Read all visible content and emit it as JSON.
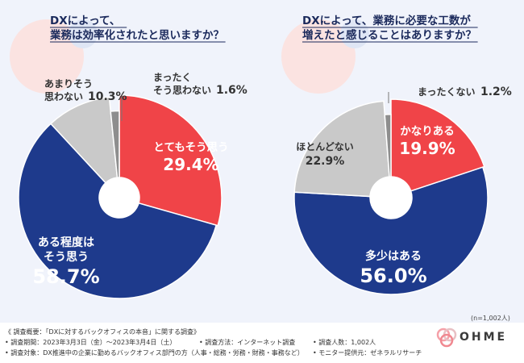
{
  "chart_data": [
    {
      "type": "pie",
      "title": "DXによって、業務は効率化されたと思いますか？",
      "title_lines": [
        "DXによって、",
        "業務は効率化されたと思いますか？"
      ],
      "slices": [
        {
          "label": "とてもそう思う",
          "value": 29.4,
          "display_value": "29.4%",
          "color": "#f04448"
        },
        {
          "label": "ある程度はそう思う",
          "label_lines": [
            "ある程度は",
            "そう思う"
          ],
          "value": 58.7,
          "display_value": "58.7%",
          "color": "#1e3a8c"
        },
        {
          "label": "あまりそう思わない",
          "label_lines": [
            "あまりそう",
            "思わない"
          ],
          "value": 10.3,
          "display_value": "10.3%",
          "color": "#c9c9c9"
        },
        {
          "label": "まったくそう思わない",
          "label_lines": [
            "まったく",
            "そう思わない"
          ],
          "value": 1.6,
          "display_value": "1.6%",
          "color": "#8e8e8e"
        }
      ]
    },
    {
      "type": "pie",
      "title": "DXによって、業務に必要な工数が増えたと感じることはありますか？",
      "title_lines": [
        "DXによって、業務に必要な工数が",
        "増えたと感じることはありますか？"
      ],
      "slices": [
        {
          "label": "かなりある",
          "value": 19.9,
          "display_value": "19.9%",
          "color": "#f04448"
        },
        {
          "label": "多少はある",
          "value": 56.0,
          "display_value": "56.0%",
          "color": "#1e3a8c"
        },
        {
          "label": "ほとんどない",
          "value": 22.9,
          "display_value": "22.9%",
          "color": "#c9c9c9"
        },
        {
          "label": "まったくない",
          "value": 1.2,
          "display_value": "1.2%",
          "color": "#8e8e8e"
        }
      ]
    }
  ],
  "sample_note": "(n=1,002人)",
  "footer": {
    "survey_name": "《 調査概要：「DXに対するバックオフィスの本音」に関する調査》",
    "period": "• 調査期間：2023年3月3日（金）～2023年3月4日（土）",
    "method": "• 調査方法：インターネット調査",
    "count": "• 調査人数：1,002人",
    "target": "• 調査対象：DX推進中の企業に勤めるバックオフィス部門の方（人事・総務・労務・財務・事務など）",
    "provider": "• モニター提供元：ゼネラルリサーチ"
  },
  "brand": "OHME",
  "colors": {
    "accent": "#1e3a8c",
    "red": "#f04448",
    "light_gray": "#c9c9c9",
    "dark_gray": "#8e8e8e"
  }
}
